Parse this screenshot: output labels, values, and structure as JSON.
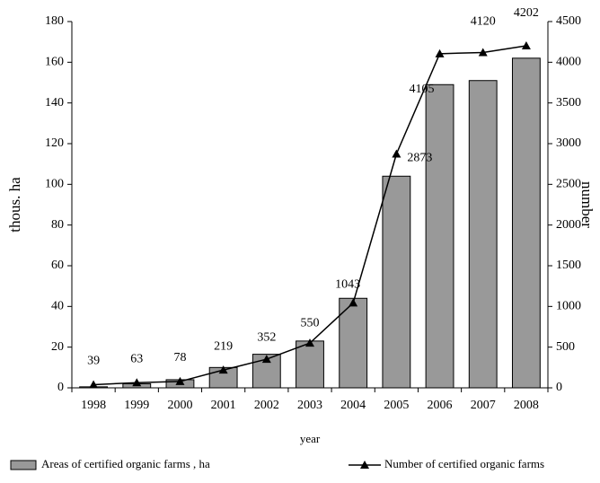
{
  "chart_data": {
    "type": "bar_line",
    "categories": [
      "1998",
      "1999",
      "2000",
      "2001",
      "2002",
      "2003",
      "2004",
      "2005",
      "2006",
      "2007",
      "2008"
    ],
    "series": [
      {
        "name": "Areas of certified organic farms , ha",
        "color": "#999999",
        "type": "bar",
        "values": [
          0.5,
          2,
          4,
          10,
          16.5,
          23,
          44,
          104,
          149,
          151,
          162
        ]
      },
      {
        "name": "Number of certified organic farms",
        "color": "#000000",
        "type": "line",
        "axis": "y2",
        "values": [
          39,
          63,
          78,
          219,
          352,
          550,
          1043,
          2873,
          4105,
          4120,
          4202
        ]
      }
    ],
    "ylabel": "thous. ha",
    "y2label": "number",
    "xlabel": "year",
    "ylim": [
      0,
      180
    ],
    "yticks": [
      0,
      20,
      40,
      60,
      80,
      100,
      120,
      140,
      160,
      180
    ],
    "y2lim": [
      0,
      4500
    ],
    "y2ticks": [
      0,
      500,
      1000,
      1500,
      2000,
      2500,
      3000,
      3500,
      4000,
      4500
    ],
    "legend": "bottom"
  }
}
